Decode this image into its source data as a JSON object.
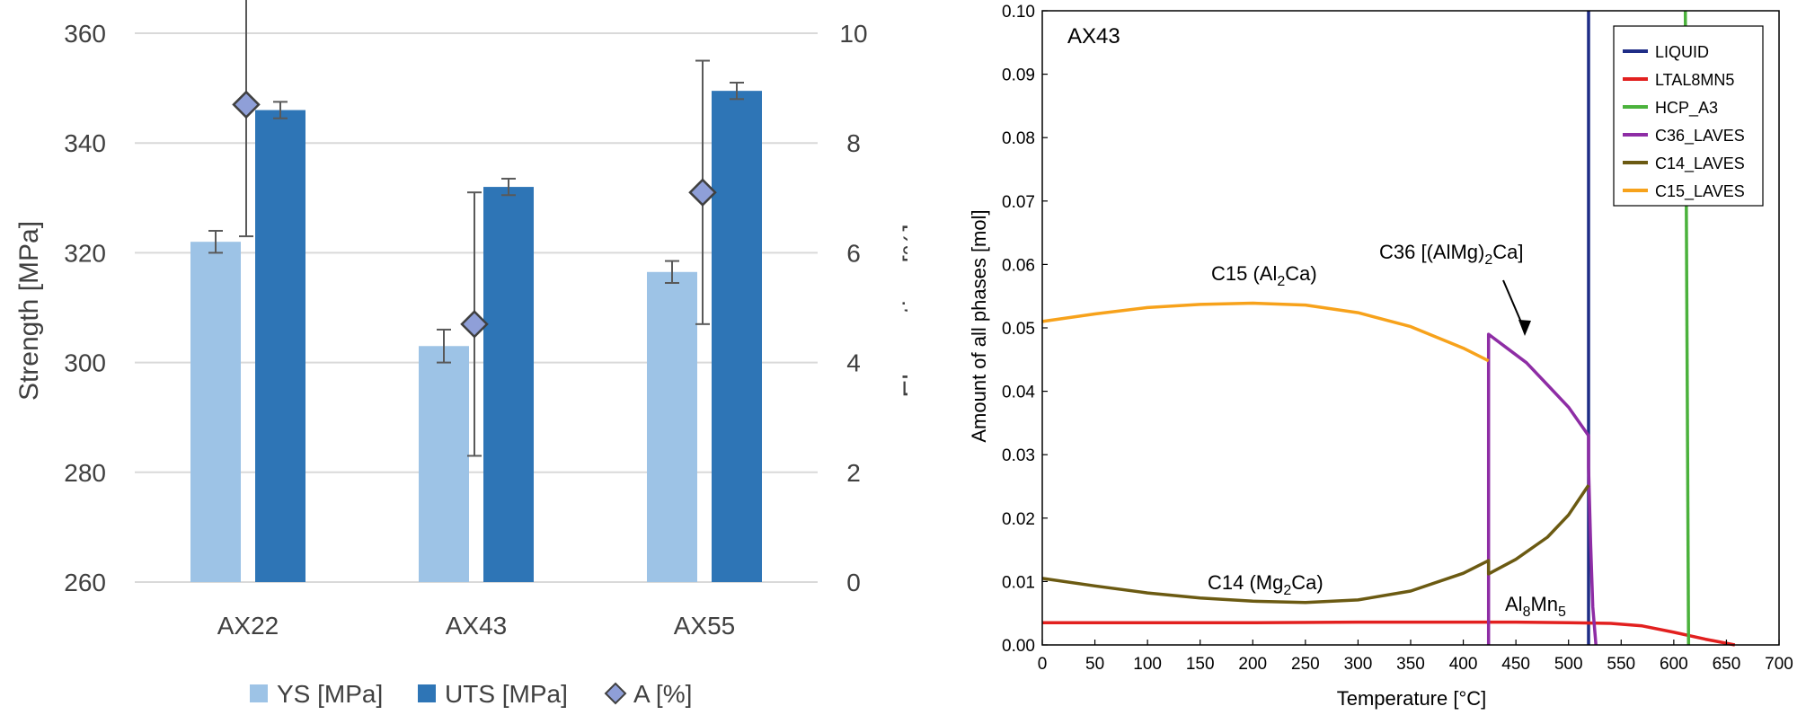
{
  "chart_data": [
    {
      "type": "bar",
      "categories": [
        "AX22",
        "AX43",
        "AX55"
      ],
      "ylabel": "Strength [MPa]",
      "ylim": [
        260,
        360
      ],
      "yticks": [
        260,
        280,
        300,
        320,
        340,
        360
      ],
      "y2label": "Elongation [%]",
      "y2lim": [
        0,
        10
      ],
      "y2ticks": [
        0,
        2,
        4,
        6,
        8,
        10
      ],
      "grid": "horizontal",
      "legend_position": "bottom",
      "series": [
        {
          "name": "YS [MPa]",
          "kind": "bar",
          "axis": "left",
          "color": "#9DC3E6",
          "values": [
            322,
            303,
            316.5
          ],
          "errors": [
            2,
            3,
            2
          ]
        },
        {
          "name": "UTS [MPa]",
          "kind": "bar",
          "axis": "left",
          "color": "#2E75B6",
          "values": [
            346,
            332,
            349.5
          ],
          "errors": [
            1.5,
            1.5,
            1.5
          ]
        },
        {
          "name": "A [%]",
          "kind": "marker",
          "marker": "diamond",
          "axis": "right",
          "color": "#8F9FD8",
          "values": [
            8.7,
            4.7,
            7.1
          ],
          "errors": [
            2.4,
            2.4,
            2.4
          ]
        }
      ]
    },
    {
      "type": "line",
      "annotation": "AX43",
      "xlabel": "Temperature [°C]",
      "ylabel": "Amount of all phases [mol]",
      "xlim": [
        0,
        700
      ],
      "ylim": [
        0,
        0.1
      ],
      "xticks": [
        0,
        50,
        100,
        150,
        200,
        250,
        300,
        350,
        400,
        450,
        500,
        550,
        600,
        650,
        700
      ],
      "yticks": [
        "0.00",
        "0.01",
        "0.02",
        "0.03",
        "0.04",
        "0.05",
        "0.06",
        "0.07",
        "0.08",
        "0.09",
        "0.10"
      ],
      "legend_position": "top-right",
      "series": [
        {
          "name": "LIQUID",
          "color": "#1F2D87",
          "x": [
            519,
            519
          ],
          "y": [
            0,
            0.1
          ]
        },
        {
          "name": "LTAL8MN5",
          "color": "#E2201F",
          "x": [
            0,
            100,
            200,
            300,
            400,
            450,
            500,
            540,
            570,
            600,
            630,
            658
          ],
          "y": [
            0.0035,
            0.0035,
            0.0035,
            0.0036,
            0.0036,
            0.0036,
            0.0035,
            0.0034,
            0.003,
            0.002,
            0.0009,
            0
          ]
        },
        {
          "name": "HCP_A3",
          "color": "#4BB23C",
          "x": [
            611,
            614
          ],
          "y": [
            0.1,
            0
          ]
        },
        {
          "name": "C36_LAVES",
          "color": "#8E2DA5",
          "x": [
            424,
            424,
            440,
            460,
            480,
            500,
            519,
            519,
            521,
            523,
            526
          ],
          "y": [
            0,
            0.049,
            0.047,
            0.0445,
            0.041,
            0.0375,
            0.033,
            0.028,
            0.016,
            0.006,
            0
          ]
        },
        {
          "name": "C14_LAVES",
          "color": "#6B5A12",
          "x": [
            0,
            50,
            100,
            150,
            200,
            250,
            300,
            350,
            400,
            424,
            424,
            450,
            480,
            500,
            519
          ],
          "y": [
            0.0105,
            0.0093,
            0.0082,
            0.0074,
            0.0069,
            0.0067,
            0.0071,
            0.0085,
            0.0113,
            0.0133,
            0.0112,
            0.0135,
            0.017,
            0.0205,
            0.0252
          ]
        },
        {
          "name": "C15_LAVES",
          "color": "#F7A21B",
          "x": [
            0,
            50,
            100,
            150,
            200,
            250,
            300,
            350,
            400,
            424
          ],
          "y": [
            0.051,
            0.0522,
            0.0532,
            0.0537,
            0.0539,
            0.0536,
            0.0524,
            0.0502,
            0.0468,
            0.0448
          ]
        }
      ],
      "labels": {
        "c15": {
          "main": "C15 (Al",
          "sub": "2",
          "tail": "Ca)"
        },
        "c36": {
          "main": "C36 [(AlMg)",
          "sub": "2",
          "tail": "Ca]"
        },
        "c14": {
          "main": "C14 (Mg",
          "sub": "2",
          "tail": "Ca)"
        },
        "al8mn5": {
          "a": "Al",
          "s1": "8",
          "b": "Mn",
          "s2": "5"
        }
      }
    }
  ]
}
